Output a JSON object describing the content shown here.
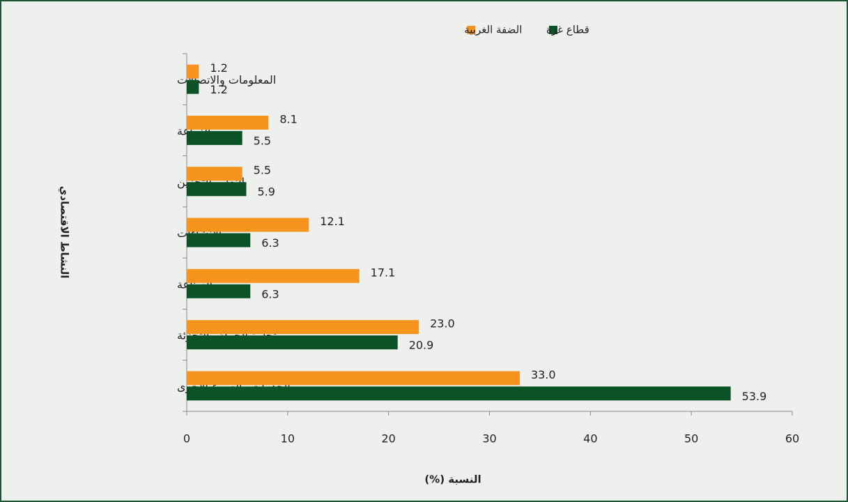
{
  "chart_data": {
    "type": "hbar",
    "categories": [
      "المعلومات والاتصالات",
      "الزراعة",
      "النقل والتخزين",
      "الانشاءات",
      "الصناعة",
      "تجارة الجملة والتجزئة",
      "الخدمات والفروع الاخرى"
    ],
    "series": [
      {
        "name": "قطاع غزة",
        "color": "#0b5326",
        "values": [
          1.2,
          5.5,
          5.9,
          6.3,
          6.3,
          20.9,
          53.9
        ],
        "value_labels": [
          "1.2",
          "5.5",
          "5.9",
          "6.3",
          "6.3",
          "20.9",
          "53.9"
        ]
      },
      {
        "name": "الضفة الغربية",
        "color": "#f7941d",
        "values": [
          1.2,
          8.1,
          5.5,
          12.1,
          17.1,
          23,
          33
        ],
        "value_labels": [
          "1.2",
          "8.1",
          "5.5",
          "12.1",
          "17.1",
          "23.0",
          "33.0"
        ]
      }
    ],
    "x_label": "النسبة (%)",
    "y_label": "النشاط الاقتصادي",
    "xlim": [
      0,
      60
    ],
    "xticks": [
      0,
      10,
      20,
      30,
      40,
      50,
      60
    ],
    "legend": "top"
  }
}
